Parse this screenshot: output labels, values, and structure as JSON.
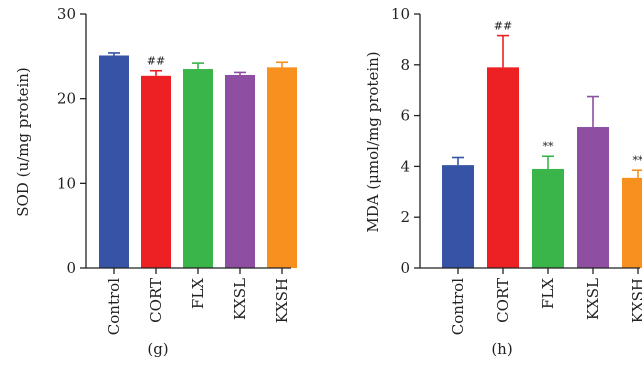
{
  "chart_data": [
    {
      "type": "bar",
      "panel_label": "(g)",
      "ylabel": "SOD (u/mg protein)",
      "categories": [
        "Control",
        "CORT",
        "FLX",
        "KXSL",
        "KXSH"
      ],
      "values": [
        25.1,
        22.7,
        23.5,
        22.8,
        23.7
      ],
      "errors": [
        0.3,
        0.6,
        0.7,
        0.3,
        0.6
      ],
      "annotations": [
        "",
        "##",
        "",
        "",
        ""
      ],
      "ylim": [
        0,
        30
      ],
      "yticks": [
        "0",
        "10",
        "20",
        "30"
      ],
      "colors": [
        "#3653a5",
        "#ed2024",
        "#39b54a",
        "#8e4ea1",
        "#f7901e"
      ],
      "grid": false,
      "legend": "none"
    },
    {
      "type": "bar",
      "panel_label": "(h)",
      "ylabel": "MDA (μmol/mg protein)",
      "categories": [
        "Control",
        "CORT",
        "FLX",
        "KXSL",
        "KXSH"
      ],
      "values": [
        4.05,
        7.9,
        3.9,
        5.55,
        3.55
      ],
      "errors": [
        0.3,
        1.25,
        0.5,
        1.2,
        0.3
      ],
      "annotations": [
        "",
        "##",
        "**",
        "",
        "**"
      ],
      "ylim": [
        0,
        10
      ],
      "yticks": [
        "0",
        "2",
        "4",
        "6",
        "8",
        "10"
      ],
      "colors": [
        "#3653a5",
        "#ed2024",
        "#39b54a",
        "#8e4ea1",
        "#f7901e"
      ],
      "grid": false,
      "legend": "none"
    }
  ]
}
